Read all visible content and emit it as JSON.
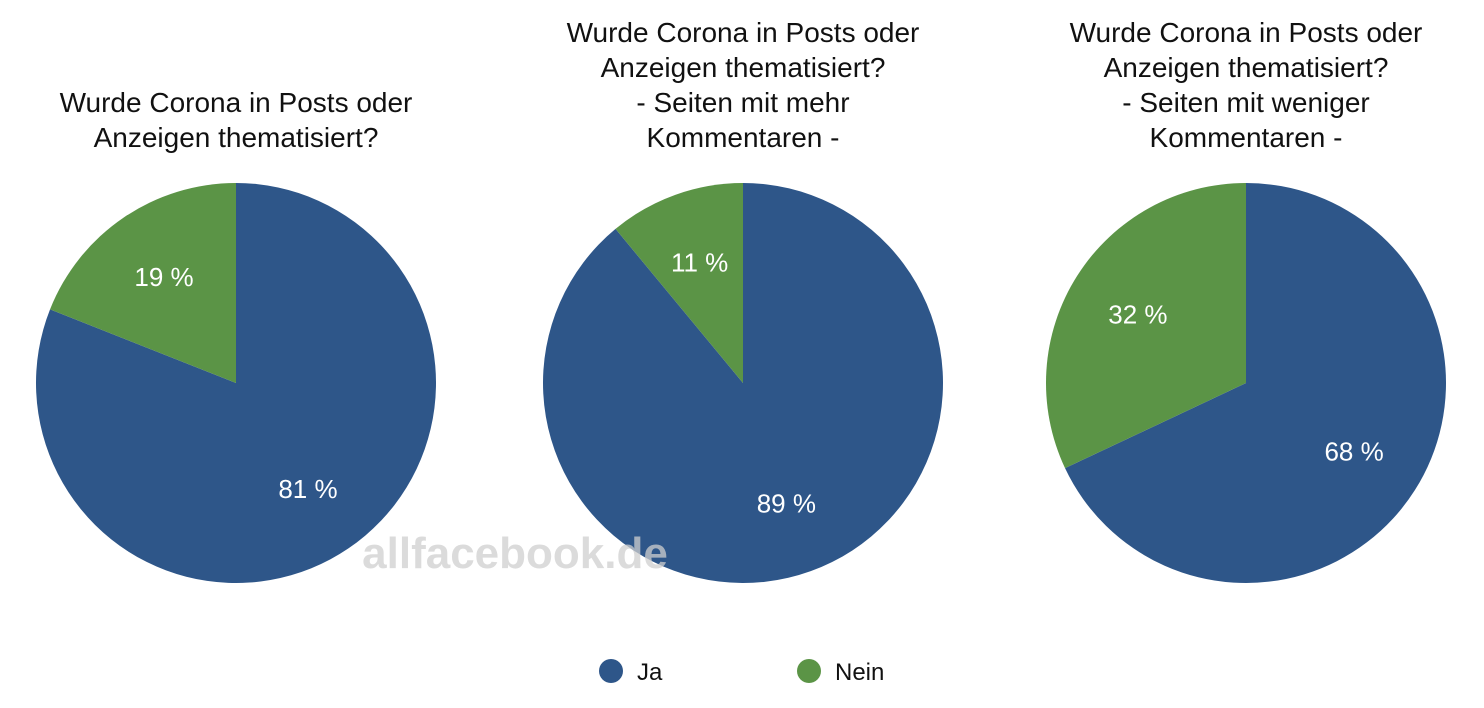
{
  "chart_data": [
    {
      "type": "pie",
      "title_lines": [
        "Wurde Corona in Posts oder",
        "Anzeigen thematisiert?"
      ],
      "slices": [
        {
          "label": "Ja",
          "value": 81,
          "display": "81 %"
        },
        {
          "label": "Nein",
          "value": 19,
          "display": "19 %"
        }
      ]
    },
    {
      "type": "pie",
      "title_lines": [
        "Wurde Corona in Posts oder",
        "Anzeigen thematisiert?",
        "- Seiten mit mehr",
        "Kommentaren -"
      ],
      "slices": [
        {
          "label": "Ja",
          "value": 89,
          "display": "89 %"
        },
        {
          "label": "Nein",
          "value": 11,
          "display": "11 %"
        }
      ]
    },
    {
      "type": "pie",
      "title_lines": [
        "Wurde Corona in Posts oder",
        "Anzeigen thematisiert?",
        "- Seiten mit weniger",
        "Kommentaren -"
      ],
      "slices": [
        {
          "label": "Ja",
          "value": 68,
          "display": "68 %"
        },
        {
          "label": "Nein",
          "value": 32,
          "display": "32 %"
        }
      ]
    }
  ],
  "legend": [
    {
      "label": "Ja",
      "color": "#2e5689"
    },
    {
      "label": "Nein",
      "color": "#5b9446"
    }
  ],
  "colors": {
    "Ja": "#2e5689",
    "Nein": "#5b9446"
  },
  "watermark": "allfacebook.de"
}
